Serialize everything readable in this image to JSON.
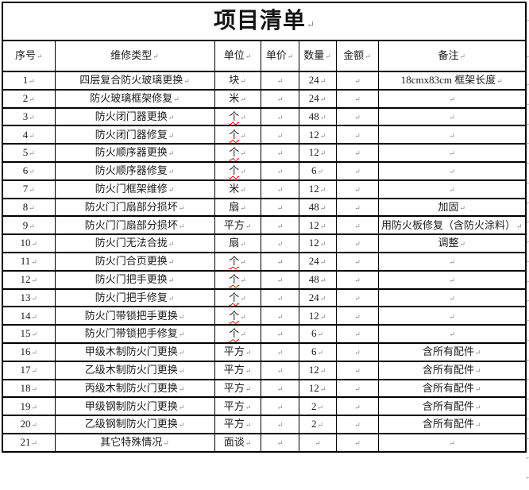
{
  "table": {
    "title": "项目清单",
    "paragraph_mark": "↵",
    "columns": [
      "序号",
      "维修类型",
      "单位",
      "单价",
      "数量",
      "金额",
      "备注"
    ],
    "rows": [
      {
        "no": "1",
        "type": "四层复合防火玻璃更换",
        "unit": "块",
        "misspell": false,
        "price": "",
        "qty": "24",
        "amount": "",
        "remark": "18cmx83cm 框架长度"
      },
      {
        "no": "2",
        "type": "防火玻璃框架修复",
        "unit": "米",
        "misspell": false,
        "price": "",
        "qty": "24",
        "amount": "",
        "remark": ""
      },
      {
        "no": "3",
        "type": "防火闭门器更换",
        "unit": "个",
        "misspell": true,
        "price": "",
        "qty": "48",
        "amount": "",
        "remark": ""
      },
      {
        "no": "4",
        "type": "防火闭门器修复",
        "unit": "个",
        "misspell": true,
        "price": "",
        "qty": "12",
        "amount": "",
        "remark": ""
      },
      {
        "no": "5",
        "type": "防火顺序器更换",
        "unit": "个",
        "misspell": true,
        "price": "",
        "qty": "12",
        "amount": "",
        "remark": ""
      },
      {
        "no": "6",
        "type": "防火顺序器修复",
        "unit": "个",
        "misspell": true,
        "price": "",
        "qty": "6",
        "amount": "",
        "remark": ""
      },
      {
        "no": "7",
        "type": "防火门框架维修",
        "unit": "米",
        "misspell": false,
        "price": "",
        "qty": "12",
        "amount": "",
        "remark": ""
      },
      {
        "no": "8",
        "type": "防火门门扇部分损坏",
        "unit": "扇",
        "misspell": false,
        "price": "",
        "qty": "48",
        "amount": "",
        "remark": "加固"
      },
      {
        "no": "9",
        "type": "防火门门扇部分损坏",
        "unit": "平方",
        "misspell": false,
        "price": "",
        "qty": "12",
        "amount": "",
        "remark": "用防火板修复（含防火涂料）"
      },
      {
        "no": "10",
        "type": "防火门无法合拢",
        "unit": "扇",
        "misspell": false,
        "price": "",
        "qty": "12",
        "amount": "",
        "remark": "调整"
      },
      {
        "no": "11",
        "type": "防火门合页更换",
        "unit": "个",
        "misspell": true,
        "price": "",
        "qty": "24",
        "amount": "",
        "remark": ""
      },
      {
        "no": "12",
        "type": "防火门把手更换",
        "unit": "个",
        "misspell": true,
        "price": "",
        "qty": "48",
        "amount": "",
        "remark": ""
      },
      {
        "no": "13",
        "type": "防火门把手修复",
        "unit": "个",
        "misspell": true,
        "price": "",
        "qty": "24",
        "amount": "",
        "remark": ""
      },
      {
        "no": "14",
        "type": "防火门带锁把手更换",
        "unit": "个",
        "misspell": true,
        "price": "",
        "qty": "12",
        "amount": "",
        "remark": ""
      },
      {
        "no": "15",
        "type": "防火门带锁把手修复",
        "unit": "个",
        "misspell": true,
        "price": "",
        "qty": "6",
        "amount": "",
        "remark": ""
      },
      {
        "no": "16",
        "type": "甲级木制防火门更换",
        "unit": "平方",
        "misspell": false,
        "price": "",
        "qty": "6",
        "amount": "",
        "remark": "含所有配件"
      },
      {
        "no": "17",
        "type": "乙级木制防火门更换",
        "unit": "平方",
        "misspell": false,
        "price": "",
        "qty": "12",
        "amount": "",
        "remark": "含所有配件"
      },
      {
        "no": "18",
        "type": "丙级木制防火门更换",
        "unit": "平方",
        "misspell": false,
        "price": "",
        "qty": "12",
        "amount": "",
        "remark": "含所有配件"
      },
      {
        "no": "19",
        "type": "甲级钢制防火门更换",
        "unit": "平方",
        "misspell": false,
        "price": "",
        "qty": "2",
        "amount": "",
        "remark": "含所有配件"
      },
      {
        "no": "20",
        "type": "乙级钢制防火门更换",
        "unit": "平方",
        "misspell": false,
        "price": "",
        "qty": "2",
        "amount": "",
        "remark": "含所有配件"
      },
      {
        "no": "21",
        "type": "其它特殊情况",
        "unit": "面谈",
        "misspell": false,
        "price": "",
        "qty": "",
        "amount": "",
        "remark": ""
      }
    ]
  },
  "colors": {
    "border": "#000000",
    "text": "#1b1b1b",
    "formatting_mark": "#8a8a8a",
    "spellcheck_squiggle": "#ff0000"
  }
}
